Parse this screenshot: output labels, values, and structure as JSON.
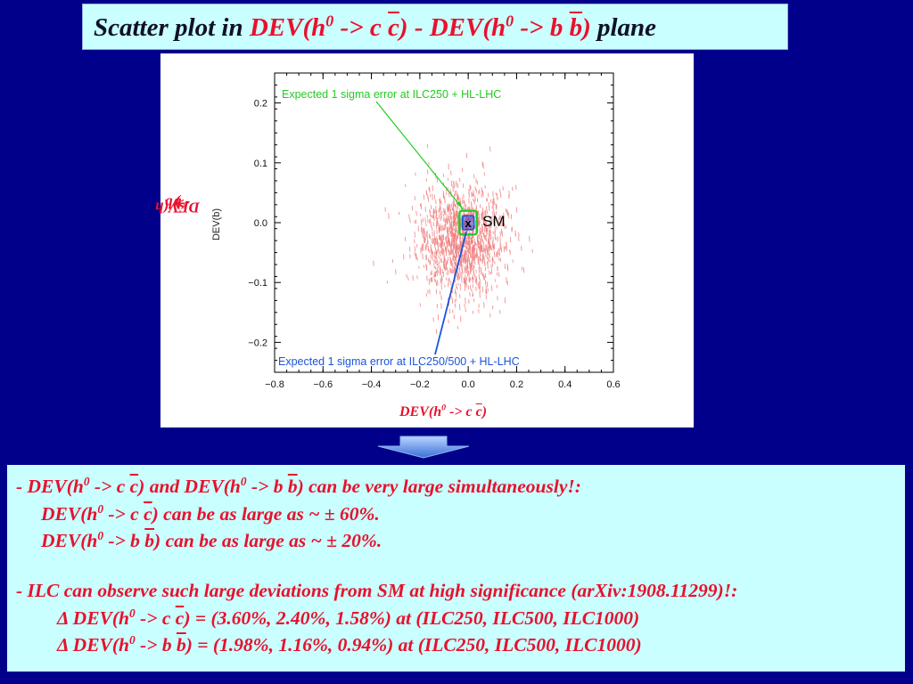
{
  "title": {
    "prefix": "Scatter plot in ",
    "dev1": "DEV(h",
    "sup0a": "0",
    "arrow_cc": " -> c ",
    "cbar": "c",
    "close_minus": ") - DEV(h",
    "sup0b": "0",
    "arrow_bb": " -> b ",
    "bbar": "b",
    "close": ")",
    "suffix": "  plane"
  },
  "plot": {
    "ylabel_prefix": "DEV(h",
    "ylabel_sup": "0",
    "ylabel_mid": " -> b ",
    "ylabel_bar": "b",
    "ylabel_close": ")",
    "ylabel_small": "DEV(b)",
    "xlabel_prefix": "DEV(h",
    "xlabel_sup": "0",
    "xlabel_mid": " -> c ",
    "xlabel_bar": "c",
    "xlabel_close": ")",
    "sm_label": "SM",
    "sm_marker": "x",
    "annot_green": "Expected 1 sigma error at ILC250 + HL-LHC",
    "annot_blue": "Expected 1 sigma error at ILC250/500 + HL-LHC",
    "colors": {
      "scatter": "#f08080",
      "green": "#22cc22",
      "blue": "#1a55dd"
    }
  },
  "chart_data": {
    "type": "scatter",
    "xlim": [
      -0.8,
      0.6
    ],
    "ylim": [
      -0.25,
      0.25
    ],
    "xticks": [
      "−0.8",
      "−0.6",
      "−0.4",
      "−0.2",
      "0.0",
      "0.2",
      "0.4",
      "0.6"
    ],
    "yticks": [
      "0.2",
      "0.1",
      "0.0",
      "−0.1",
      "−0.2"
    ],
    "xtick_values": [
      -0.8,
      -0.6,
      -0.4,
      -0.2,
      0.0,
      0.2,
      0.4,
      0.6
    ],
    "ytick_values": [
      0.2,
      0.1,
      0.0,
      -0.1,
      -0.2
    ],
    "sm_point": [
      0.0,
      0.0
    ],
    "green_ellipse": {
      "dx": 0.036,
      "dy": 0.0198
    },
    "blue_ellipse": {
      "dx": 0.024,
      "dy": 0.0116
    }
  },
  "text": {
    "l1_a": "- DEV(h",
    "l1_sup1": "0",
    "l1_b": " -> c ",
    "l1_bar1": "c",
    "l1_c": ") and DEV(h",
    "l1_sup2": "0",
    "l1_d": " -> b ",
    "l1_bar2": "b",
    "l1_e": ") can be very large simultaneously!:",
    "l2_a": "DEV(h",
    "l2_sup": "0",
    "l2_b": " -> c ",
    "l2_bar": "c",
    "l2_c": ") can be as large as ~ ± 60%.",
    "l3_a": "DEV(h",
    "l3_sup": "0",
    "l3_b": " -> b ",
    "l3_bar": "b",
    "l3_c": ") can be as large as ~ ± 20%.",
    "l4": "- ILC can observe such large deviations from SM at high significance (arXiv:1908.11299)!:",
    "l5_a": "Δ DEV(h",
    "l5_sup": "0",
    "l5_b": " -> c ",
    "l5_bar": "c",
    "l5_c": ") = (3.60%, 2.40%, 1.58%) at (ILC250, ILC500, ILC1000)",
    "l6_a": "Δ DEV(h",
    "l6_sup": "0",
    "l6_b": " -> b ",
    "l6_bar": "b",
    "l6_c": ") = (1.98%, 1.16%, 0.94%) at (ILC250, ILC500, ILC1000)"
  }
}
